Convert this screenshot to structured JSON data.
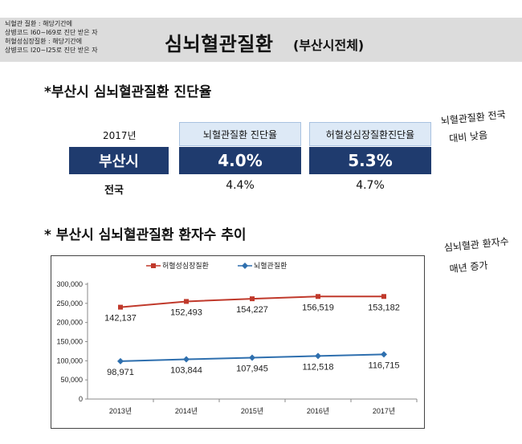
{
  "header": {
    "notes": [
      "뇌혈관 질환 : 해당기간에",
      "상병코드 I60~I69로 진단 받은 자",
      "허혈성심장질환 : 해당기간에",
      "상병코드 I20~I25로 진단 받은 자"
    ],
    "title": "심뇌혈관질환",
    "subtitle": "(부산시전체)"
  },
  "section1": {
    "heading": "*부산시 심뇌혈관질환 진단율",
    "year_label": "2017년",
    "columns": [
      "뇌혈관질환 진단율",
      "허혈성심장질환진단율"
    ],
    "busan": {
      "label": "부산시",
      "values": [
        "4.0%",
        "5.3%"
      ]
    },
    "national": {
      "label": "전국",
      "values": [
        "4.4%",
        "4.7%"
      ]
    },
    "handwritten_note": [
      "뇌혈관질환 전국",
      "대비 낮음"
    ]
  },
  "section2": {
    "heading": "* 부산시 심뇌혈관질환 환자수 추이",
    "handwritten_note": [
      "심뇌혈관 환자수",
      "매년 증가"
    ]
  },
  "chart_data": {
    "type": "line",
    "categories": [
      "2013년",
      "2014년",
      "2015년",
      "2016년",
      "2017년"
    ],
    "series": [
      {
        "name": "허혈성심장질환",
        "values": [
          142137,
          152493,
          154227,
          156519,
          153182
        ],
        "labels": [
          "142,137",
          "152,493",
          "154,227",
          "156,519",
          "153,182"
        ],
        "color": "#c0392b",
        "marker": "square"
      },
      {
        "name": "뇌혈관질환",
        "values": [
          98971,
          103844,
          107945,
          112518,
          116715
        ],
        "labels": [
          "98,971",
          "103,844",
          "107,945",
          "112,518",
          "116,715"
        ],
        "color": "#2e6fae",
        "marker": "diamond"
      }
    ],
    "series_y": [
      240000,
      255000,
      262000,
      268000,
      268000
    ],
    "ylim": [
      0,
      300000
    ],
    "yticks": [
      0,
      50000,
      100000,
      150000,
      200000,
      250000,
      300000
    ],
    "ytick_labels": [
      "0",
      "50,000",
      "100,000",
      "150,000",
      "200,000",
      "250,000",
      "300,000"
    ],
    "legend": "top",
    "grid": false,
    "title": "",
    "xlabel": "",
    "ylabel": ""
  }
}
